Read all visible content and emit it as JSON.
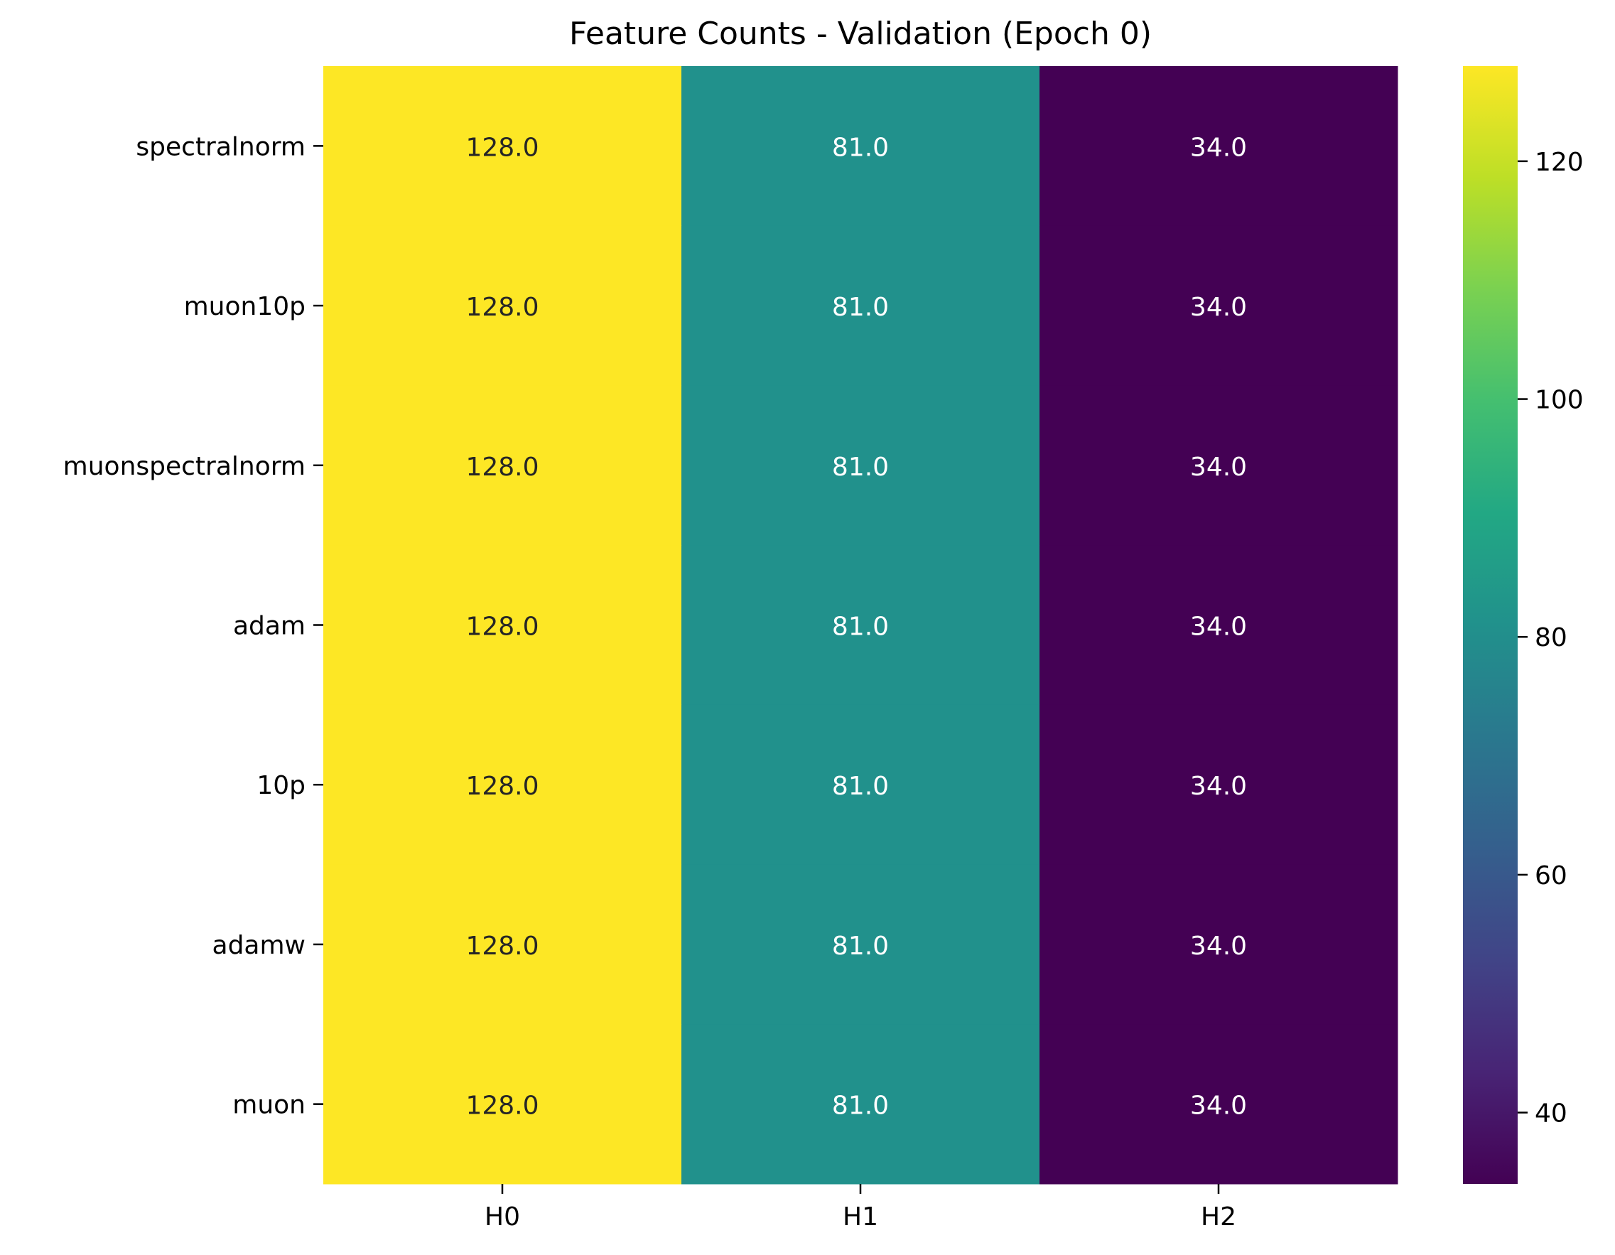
{
  "chart_data": {
    "type": "heatmap",
    "title": "Feature Counts - Validation (Epoch 0)",
    "xlabel": "",
    "ylabel": "",
    "columns": [
      "H0",
      "H1",
      "H2"
    ],
    "rows": [
      "spectralnorm",
      "muon10p",
      "muonspectralnorm",
      "adam",
      "10p",
      "adamw",
      "muon"
    ],
    "values": [
      [
        128.0,
        81.0,
        34.0
      ],
      [
        128.0,
        81.0,
        34.0
      ],
      [
        128.0,
        81.0,
        34.0
      ],
      [
        128.0,
        81.0,
        34.0
      ],
      [
        128.0,
        81.0,
        34.0
      ],
      [
        128.0,
        81.0,
        34.0
      ],
      [
        128.0,
        81.0,
        34.0
      ]
    ],
    "annotation_format": "0.0",
    "colormap": "viridis",
    "colorbar": {
      "vmin": 34.0,
      "vmax": 128.0,
      "ticks": [
        40,
        60,
        80,
        100,
        120
      ]
    },
    "cell_colors": {
      "128.0": "#fde725",
      "81.0": "#21918c",
      "34.0": "#440154"
    },
    "annotation_text_colors": {
      "light_cell": "#262626",
      "dark_cell": "#ffffff"
    },
    "grid": false
  }
}
